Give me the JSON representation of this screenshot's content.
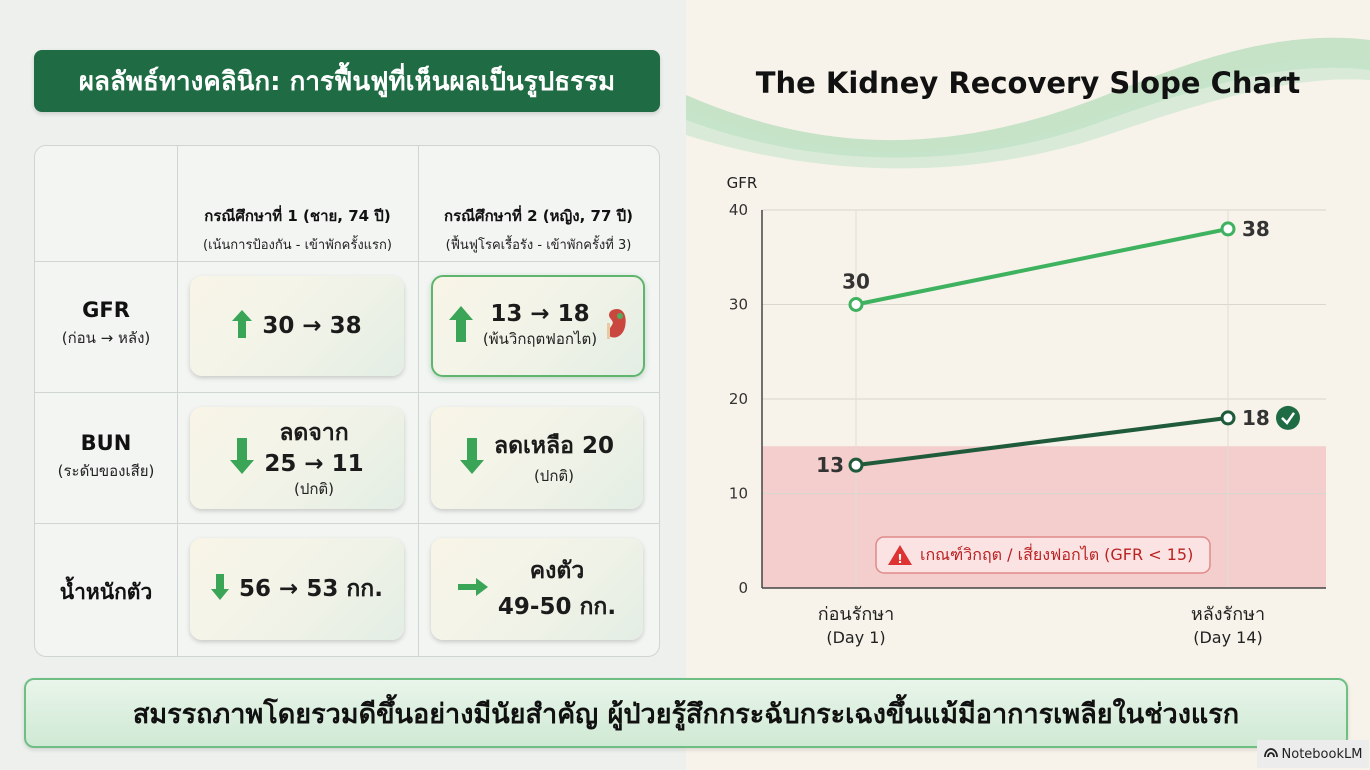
{
  "header": {
    "title": "ผลลัพธ์ทางคลินิก: การฟื้นฟูที่เห็นผลเป็นรูปธรรม"
  },
  "table": {
    "columns": [
      {
        "title": "กรณีศึกษาที่ 1 (ชาย, 74 ปี)",
        "subtitle": "(เน้นการป้องกัน - เข้าพักครั้งแรก)"
      },
      {
        "title": "กรณีศึกษาที่ 2 (หญิง, 77 ปี)",
        "subtitle": "(ฟื้นฟูโรคเรื้อรัง - เข้าพักครั้งที่ 3)"
      }
    ],
    "rows": [
      {
        "label": "GFR",
        "sublabel": "(ก่อน → หลัง)",
        "case1": {
          "main": "30 → 38",
          "trend": "up"
        },
        "case2": {
          "main": "13 → 18",
          "note": "(พ้นวิกฤตฟอกไต)",
          "trend": "up",
          "icon": "kidney-icon"
        }
      },
      {
        "label": "BUN",
        "sublabel": "(ระดับของเสีย)",
        "case1": {
          "line1": "ลดจาก",
          "main": "25 → 11",
          "note": "(ปกติ)",
          "trend": "down"
        },
        "case2": {
          "main": "ลดเหลือ 20",
          "note": "(ปกติ)",
          "trend": "down"
        }
      },
      {
        "label": "น้ำหนักตัว",
        "sublabel": "",
        "case1": {
          "main": "56 → 53 กก.",
          "trend": "down"
        },
        "case2": {
          "line1": "คงตัว",
          "main": "49-50 กก.",
          "trend": "right"
        }
      }
    ]
  },
  "chart_data": {
    "type": "line",
    "title": "The Kidney Recovery Slope Chart",
    "ylabel": "GFR",
    "ylim": [
      0,
      40
    ],
    "yticks": [
      "0",
      "10",
      "20",
      "30",
      "40"
    ],
    "categories": [
      "ก่อนรักษา (Day 1)",
      "หลังรักษา (Day 14)"
    ],
    "x_labels": [
      {
        "line1": "ก่อนรักษา",
        "line2": "(Day 1)"
      },
      {
        "line1": "หลังรักษา",
        "line2": "(Day 14)"
      }
    ],
    "series": [
      {
        "values": [
          30,
          38
        ],
        "color": "#3fb260"
      },
      {
        "values": [
          13,
          18
        ],
        "color": "#1f5a3b"
      }
    ],
    "threshold": {
      "value": 15,
      "label": "เกณฑ์วิกฤต / เสี่ยงฟอกไต (GFR < 15)",
      "color": "#f3c2c2"
    },
    "grid": true
  },
  "footer": {
    "text": "สมรรถภาพโดยรวมดีขึ้นอย่างมีนัยสำคัญ ผู้ป่วยรู้สึกกระฉับกระเฉงขึ้นแม้มีอาการเพลียในช่วงแรก"
  },
  "brand": {
    "name": "NotebookLM"
  }
}
